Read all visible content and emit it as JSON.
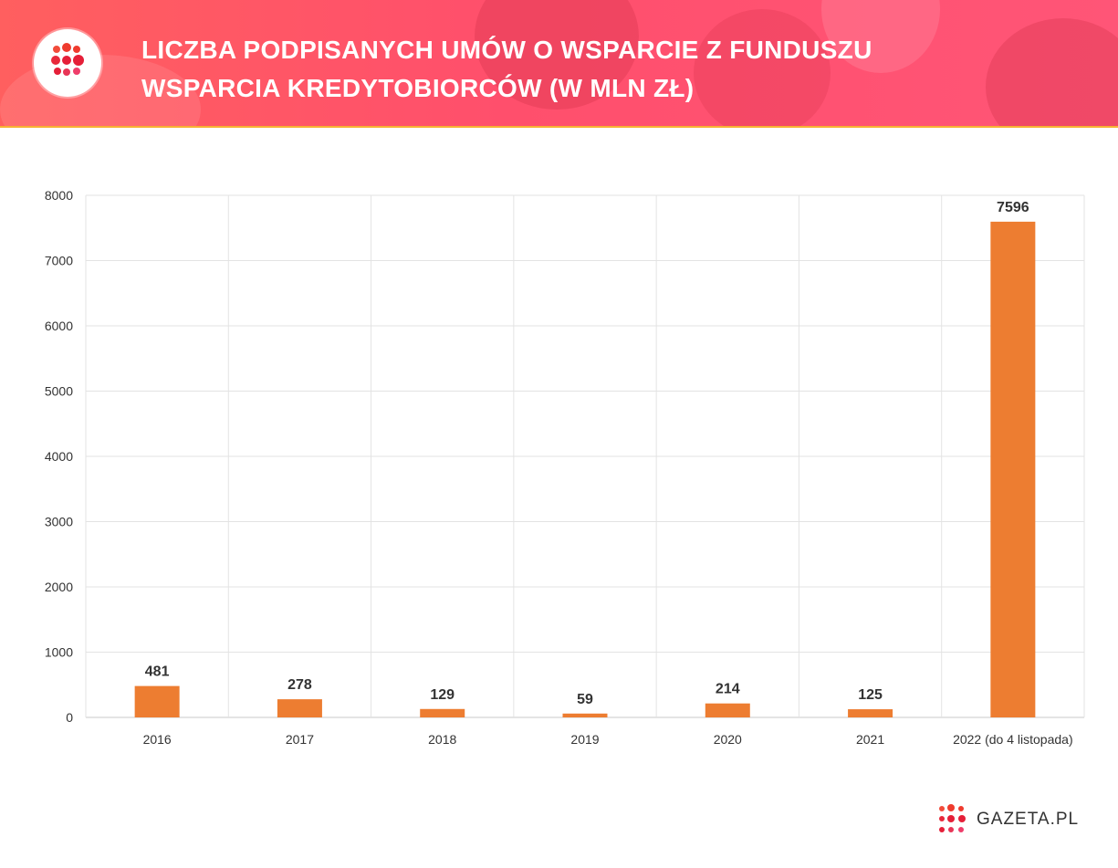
{
  "header": {
    "title_line1": "LICZBA PODPISANYCH UMÓW O WSPARCIE Z FUNDUSZU",
    "title_line2": "WSPARCIA KREDYTOBIORCÓW (W MLN ZŁ)",
    "logo_icon": "gazeta-dots-icon",
    "background_color": "#ff5467",
    "underline_color": "#f7b233"
  },
  "chart_data": {
    "type": "bar",
    "categories": [
      "2016",
      "2017",
      "2018",
      "2019",
      "2020",
      "2021",
      "2022 (do 4 listopada)"
    ],
    "values": [
      481,
      278,
      129,
      59,
      214,
      125,
      7596
    ],
    "data_labels": [
      "481",
      "278",
      "129",
      "59",
      "214",
      "125",
      "7596"
    ],
    "ylim": [
      0,
      8000
    ],
    "yticks": [
      "0",
      "1000",
      "2000",
      "3000",
      "4000",
      "5000",
      "6000",
      "7000",
      "8000"
    ],
    "grid": true,
    "bar_color": "#ed7d31",
    "title": "",
    "xlabel": "",
    "ylabel": ""
  },
  "footer": {
    "brand_name": "GAZETA.PL",
    "brand_icon": "gazeta-dots-icon"
  }
}
